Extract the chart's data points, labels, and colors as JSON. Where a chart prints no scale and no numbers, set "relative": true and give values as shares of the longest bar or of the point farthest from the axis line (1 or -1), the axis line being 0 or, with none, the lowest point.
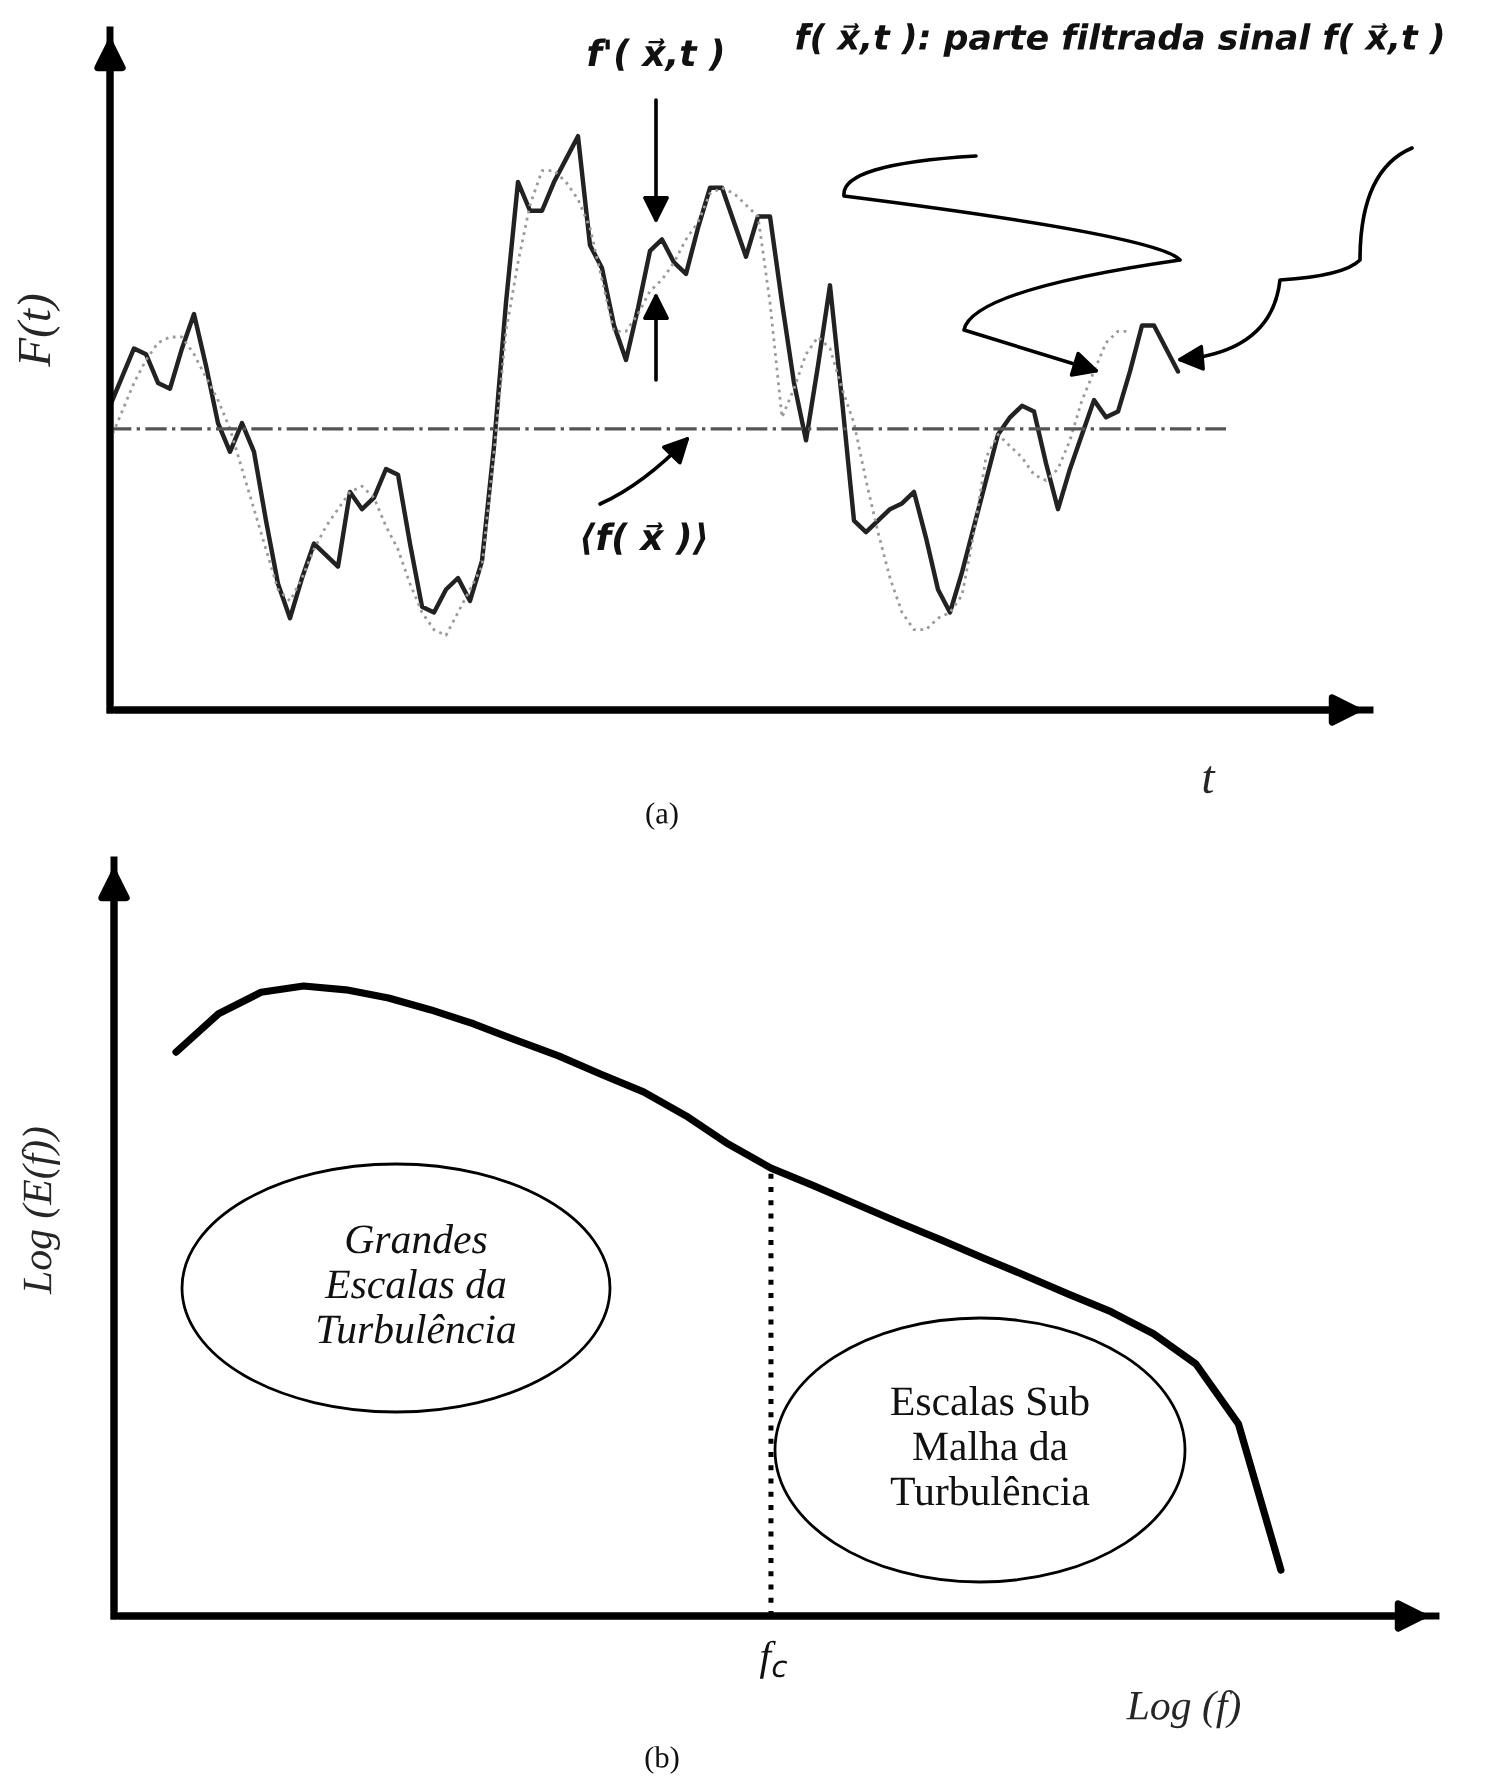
{
  "chart_data": [
    {
      "type": "line",
      "relative": true,
      "xlabel": "t",
      "ylabel": "F(t)",
      "categories": [
        null,
        null,
        null,
        null,
        null,
        null,
        null,
        null,
        null,
        null,
        null,
        null,
        null,
        null,
        null,
        null,
        null,
        null,
        null,
        null,
        null,
        null,
        null,
        null,
        null,
        null,
        null,
        null,
        null,
        null,
        null,
        null,
        null,
        null,
        null,
        null,
        null,
        null,
        null,
        null,
        null,
        null,
        null,
        null,
        null,
        null,
        null,
        null,
        null,
        null,
        null,
        null,
        null,
        null,
        null,
        null,
        null,
        null,
        null,
        null,
        null,
        null,
        null,
        null,
        null,
        null,
        null,
        null,
        null,
        null,
        null,
        null,
        null,
        null,
        null,
        null,
        null,
        null,
        null,
        null,
        null,
        null,
        null,
        null,
        null,
        null,
        null,
        null,
        null,
        null
      ],
      "series": [
        {
          "color": "#222222",
          "line_style": "solid",
          "values": [
            0.53,
            0.58,
            0.63,
            0.62,
            0.57,
            0.56,
            0.63,
            0.69,
            0.6,
            0.5,
            0.45,
            0.5,
            0.45,
            0.33,
            0.22,
            0.16,
            0.23,
            0.29,
            0.27,
            0.25,
            0.38,
            0.35,
            0.37,
            0.42,
            0.41,
            0.29,
            0.18,
            0.17,
            0.21,
            0.23,
            0.19,
            0.26,
            0.46,
            0.71,
            0.92,
            0.87,
            0.87,
            0.92,
            0.96,
            1.0,
            0.81,
            0.77,
            0.67,
            0.61,
            0.7,
            0.8,
            0.82,
            0.78,
            0.76,
            0.84,
            0.91,
            0.91,
            0.85,
            0.79,
            0.86,
            0.86,
            0.71,
            0.57,
            0.47,
            0.6,
            0.74,
            0.54,
            0.33,
            0.31,
            0.33,
            0.35,
            0.36,
            0.38,
            0.3,
            0.21,
            0.17,
            0.24,
            0.32,
            0.4,
            0.48,
            0.51,
            0.53,
            0.52,
            0.43,
            0.35,
            0.42,
            0.48,
            0.54,
            0.51,
            0.52,
            0.59,
            0.67,
            0.67,
            0.63,
            0.59
          ]
        },
        {
          "color": "#9a9a9a",
          "line_style": "dotted",
          "values": [
            0.47,
            0.52,
            0.57,
            0.61,
            0.64,
            0.65,
            0.65,
            0.62,
            0.58,
            0.54,
            0.49,
            0.42,
            0.35,
            0.28,
            0.21,
            0.19,
            0.23,
            0.28,
            0.32,
            0.35,
            0.38,
            0.39,
            0.37,
            0.32,
            0.28,
            0.22,
            0.17,
            0.14,
            0.13,
            0.17,
            0.21,
            0.25,
            0.45,
            0.66,
            0.78,
            0.88,
            0.94,
            0.94,
            0.92,
            0.89,
            0.84,
            0.75,
            0.66,
            0.66,
            0.69,
            0.73,
            0.75,
            0.78,
            0.82,
            0.85,
            0.9,
            0.91,
            0.9,
            0.88,
            0.86,
            0.71,
            0.51,
            0.56,
            0.62,
            0.65,
            0.63,
            0.56,
            0.5,
            0.4,
            0.31,
            0.23,
            0.17,
            0.14,
            0.14,
            0.16,
            0.17,
            0.2,
            0.31,
            0.44,
            0.48,
            0.46,
            0.44,
            0.41,
            0.4,
            0.42,
            0.47,
            0.54,
            0.59,
            0.64,
            0.66,
            0.66,
            null,
            null,
            null,
            null
          ]
        }
      ],
      "ref_lines": [
        {
          "axis": "y",
          "value": 0.49,
          "color": "#555555",
          "line_style": "dashdot"
        }
      ],
      "annotations": [
        "f'( x⃗,t )",
        "⟨f( x⃗ )⟩",
        "f̄( x⃗,t ): parte filtrada sinal f( x⃗,t )",
        "(a)"
      ]
    },
    {
      "type": "line",
      "relative": true,
      "xlabel": "Log (f)",
      "ylabel": "Log (E(f))",
      "categories": [
        null,
        null,
        null,
        null,
        null,
        null,
        null,
        null,
        null,
        null,
        null,
        null,
        null,
        null,
        null,
        null,
        null,
        null,
        null,
        null,
        null,
        null,
        null,
        null,
        null,
        null,
        null
      ],
      "series": [
        {
          "color": "#000000",
          "line_style": "solid",
          "values": [
            0.895,
            0.956,
            0.99,
            1.0,
            0.994,
            0.981,
            0.962,
            0.94,
            0.914,
            0.889,
            0.86,
            0.832,
            0.794,
            0.749,
            0.711,
            0.683,
            0.654,
            0.625,
            0.597,
            0.568,
            0.54,
            0.511,
            0.483,
            0.448,
            0.4,
            0.305,
            0.073
          ]
        }
      ],
      "annotations": [
        "Grandes\nEscalas da\nTurbulência",
        "Escalas Sub\nMalha da\nTurbulência",
        "f$_{c}$",
        "(b)"
      ]
    }
  ]
}
